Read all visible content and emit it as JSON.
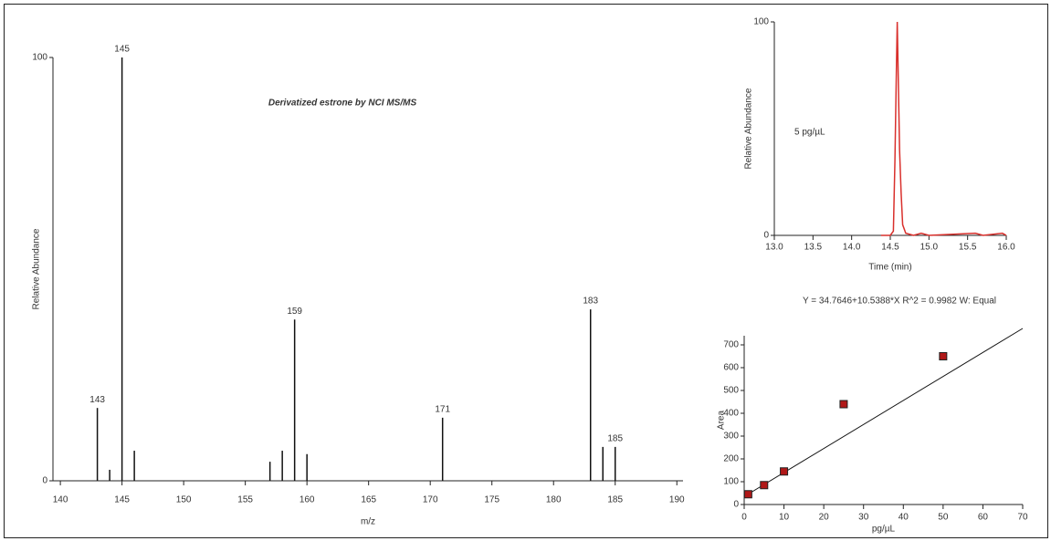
{
  "chart_data": [
    {
      "type": "bar",
      "title": "Derivatized estrone by NCI MS/MS",
      "x_label": "m/z",
      "y_label": "Relative Abundance",
      "x": [
        143,
        144,
        145,
        146,
        157,
        158,
        159,
        160,
        171,
        183,
        184,
        185
      ],
      "values": [
        17.2,
        2.6,
        100,
        7.1,
        4.5,
        7.1,
        38.1,
        6.3,
        14.9,
        40.5,
        8.0,
        8.0
      ],
      "x_labels": [
        "143",
        null,
        "145",
        null,
        null,
        null,
        "159",
        null,
        "171",
        "183",
        null,
        "185"
      ],
      "color": "#111111",
      "xlim": [
        139.4,
        190.5
      ],
      "xticks": [
        140,
        145,
        150,
        155,
        160,
        165,
        170,
        175,
        180,
        185,
        190
      ],
      "ylim": [
        0,
        100
      ],
      "yticks": [
        0,
        100
      ]
    },
    {
      "type": "line",
      "annotation": "5 pg/µL",
      "x_label": "Time (min)",
      "y_label": "Relative Abundance",
      "x": [
        14.38,
        14.5,
        14.54,
        14.56,
        14.58,
        14.59,
        14.61,
        14.62,
        14.64,
        14.66,
        14.7,
        14.8,
        14.9,
        15.0,
        15.6,
        15.7,
        15.95,
        16.0
      ],
      "values": [
        0,
        0,
        2,
        35,
        80,
        100,
        60,
        40,
        20,
        5,
        1,
        0,
        1,
        0,
        1,
        0,
        1,
        0
      ],
      "color": "#d9302c",
      "xlim": [
        13,
        16
      ],
      "xticks": [
        {
          "value": 13,
          "label": "13.0"
        },
        13.5,
        {
          "value": 14,
          "label": "14.0"
        },
        14.5,
        {
          "value": 15,
          "label": "15.0"
        },
        15.5,
        {
          "value": 16,
          "label": "16.0"
        }
      ],
      "ylim": [
        0,
        100
      ],
      "yticks": [
        0,
        100
      ]
    },
    {
      "type": "scatter",
      "title": "Y = 34.7646+10.5388*X   R^2 = 0.9982   W: Equal",
      "x_label": "pg/µL",
      "y_label": "Area",
      "x": [
        1,
        5,
        10,
        25,
        50
      ],
      "values": [
        45,
        85,
        145,
        440,
        650
      ],
      "color": "#b01818",
      "fit": {
        "x": [
          0,
          70
        ],
        "values": [
          35,
          772
        ],
        "color": "#111111"
      },
      "xlim": [
        0,
        70
      ],
      "xticks": [
        0,
        10,
        20,
        30,
        40,
        50,
        60,
        70
      ],
      "ylim": [
        0,
        740
      ],
      "yticks": [
        0,
        100,
        200,
        300,
        400,
        500,
        600,
        700
      ]
    }
  ]
}
